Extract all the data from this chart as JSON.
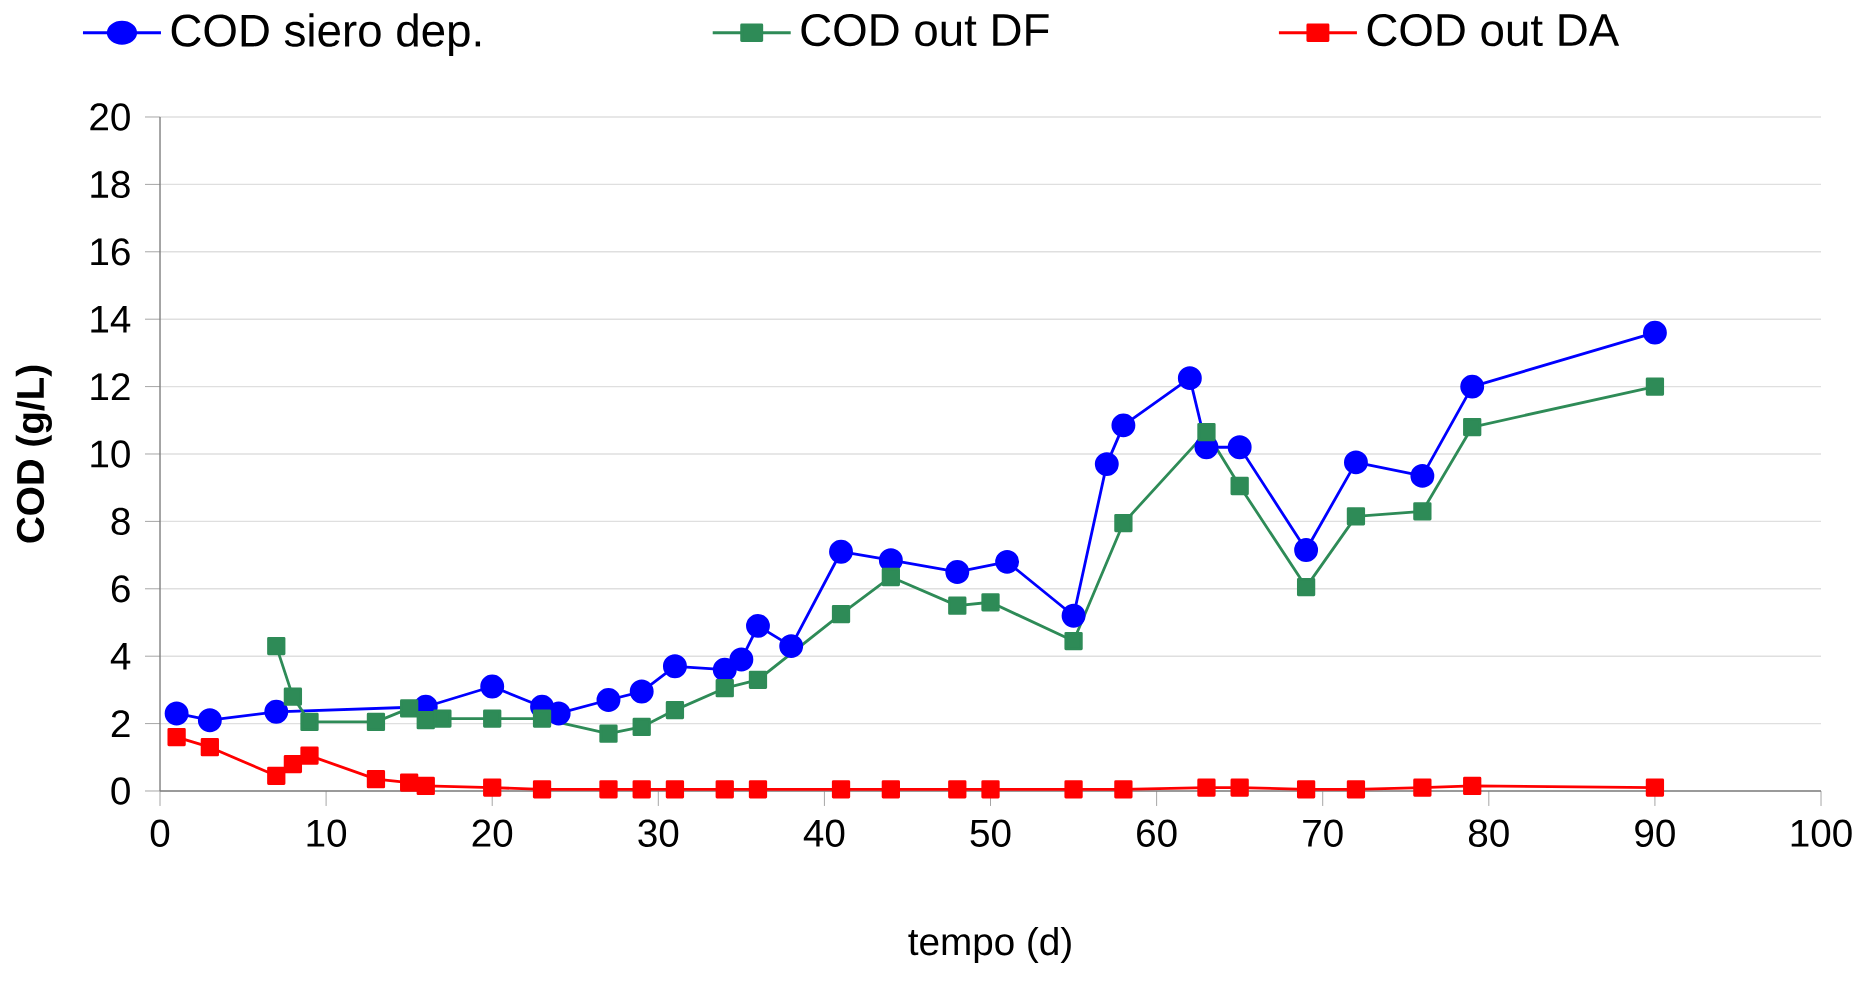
{
  "chart_data": {
    "type": "line",
    "xlabel": "tempo (d)",
    "ylabel": "COD (g/L)",
    "xlim": [
      0,
      100
    ],
    "xticks": [
      0,
      10,
      20,
      30,
      40,
      50,
      60,
      70,
      80,
      90,
      100
    ],
    "ylim": [
      0,
      20
    ],
    "yticks": [
      0,
      2,
      4,
      6,
      8,
      10,
      12,
      14,
      16,
      18,
      20
    ],
    "grid": "y",
    "legend": "top",
    "series": [
      {
        "name": "COD siero dep.",
        "color": "#0000ff",
        "marker": "circle",
        "x": [
          1,
          3,
          7,
          16,
          20,
          23,
          24,
          27,
          29,
          31,
          34,
          35,
          36,
          38,
          41,
          44,
          48,
          51,
          55,
          57,
          58,
          62,
          63,
          65,
          69,
          72,
          76,
          79,
          90
        ],
        "values": [
          2.3,
          2.1,
          2.35,
          2.5,
          3.1,
          2.5,
          2.3,
          2.7,
          2.95,
          3.7,
          3.6,
          3.9,
          4.9,
          4.3,
          7.1,
          6.85,
          6.5,
          6.8,
          5.2,
          9.7,
          10.85,
          12.25,
          10.2,
          10.2,
          7.15,
          9.75,
          9.35,
          12.0,
          13.6
        ]
      },
      {
        "name": "COD out DF",
        "color": "#2e8b57",
        "marker": "square",
        "x": [
          7,
          8,
          9,
          13,
          15,
          16,
          17,
          20,
          23,
          27,
          29,
          31,
          34,
          36,
          41,
          44,
          48,
          50,
          55,
          58,
          63,
          65,
          69,
          72,
          76,
          79,
          90
        ],
        "values": [
          4.3,
          2.8,
          2.05,
          2.05,
          2.45,
          2.1,
          2.15,
          2.15,
          2.15,
          1.7,
          1.9,
          2.4,
          3.05,
          3.3,
          5.25,
          6.35,
          5.5,
          5.6,
          4.45,
          7.95,
          10.65,
          9.05,
          6.05,
          8.15,
          8.3,
          10.8,
          12.0
        ]
      },
      {
        "name": "COD out DA",
        "color": "#ff0000",
        "marker": "square",
        "x": [
          1,
          3,
          7,
          8,
          9,
          13,
          15,
          16,
          20,
          23,
          27,
          29,
          31,
          34,
          36,
          41,
          44,
          48,
          50,
          55,
          58,
          63,
          65,
          69,
          72,
          76,
          79,
          90
        ],
        "values": [
          1.6,
          1.3,
          0.45,
          0.8,
          1.05,
          0.35,
          0.25,
          0.15,
          0.1,
          0.05,
          0.05,
          0.05,
          0.05,
          0.05,
          0.05,
          0.05,
          0.05,
          0.05,
          0.05,
          0.05,
          0.05,
          0.1,
          0.1,
          0.05,
          0.05,
          0.1,
          0.15,
          0.1
        ]
      }
    ]
  }
}
